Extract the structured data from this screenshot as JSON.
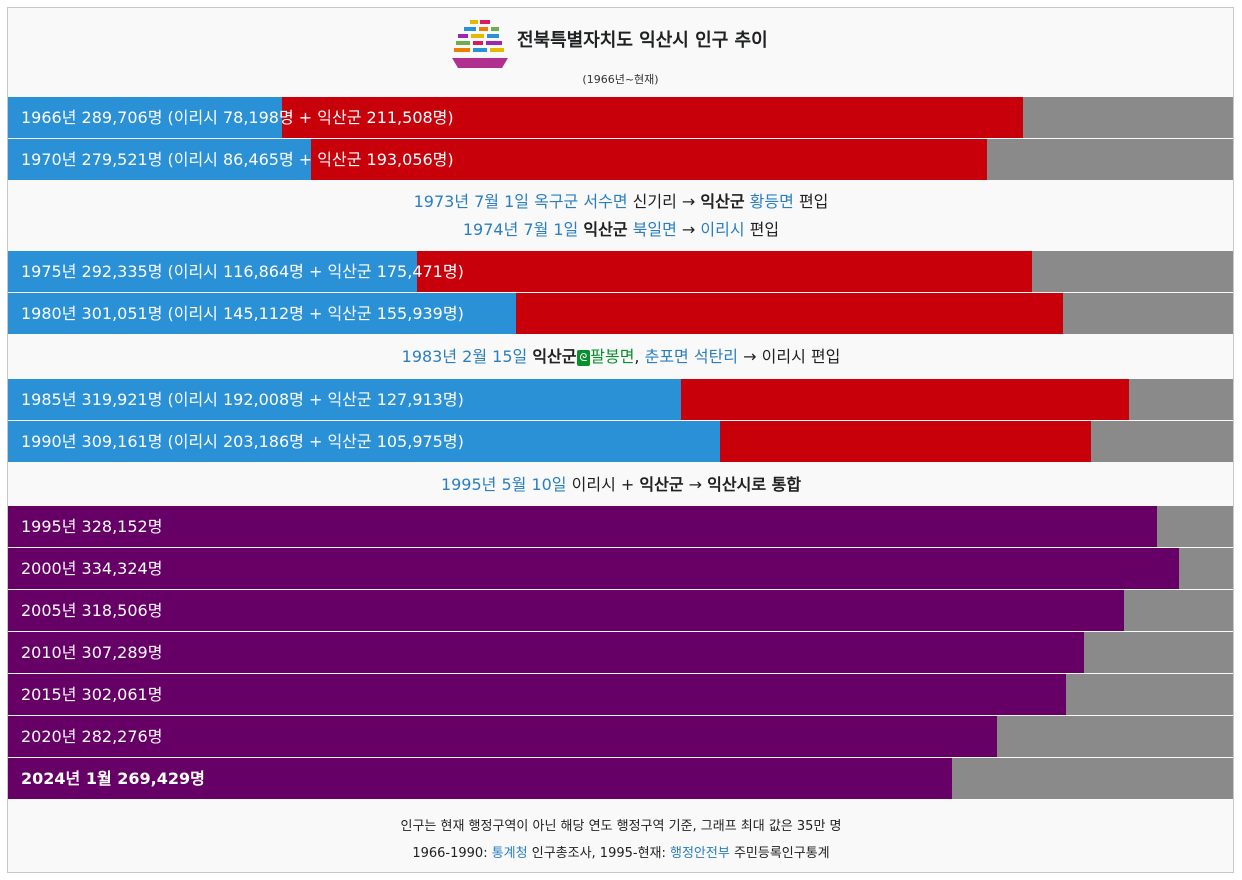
{
  "header": {
    "title": "전북특별자치도 익산시 인구 추이",
    "subtitle": "(1966년~현재)"
  },
  "colors": {
    "iri": "#2b91d6",
    "iksan_gun": "#c8000a",
    "iksan_si": "#660066",
    "remainder": "#8a8a8a",
    "link": "#2a7fc4"
  },
  "notes": {
    "n1973": {
      "date": "1973년 7월 1일",
      "from_gun": "옥구군",
      "from_myeon": "서수면",
      "from_ri": "신기리",
      "arrow": "→",
      "to_gun": "익산군",
      "to_myeon": "황등면",
      "suffix": "편입"
    },
    "n1974": {
      "date": "1974년 7월 1일",
      "from_gun": "익산군",
      "from_myeon": "북일면",
      "arrow": "→",
      "to": "이리시",
      "suffix": "편입"
    },
    "n1983": {
      "date": "1983년 2월 15일",
      "from_gun": "익산군",
      "icon": "link-icon",
      "icon_text": "ᘓ",
      "myeon1": "팔봉면",
      "comma": ", ",
      "myeon2": "춘포면",
      "ri": "석탄리",
      "arrow": "→",
      "to": "이리시",
      "suffix": "편입"
    },
    "n1995": {
      "date": "1995년 5월 10일",
      "a": "이리시",
      "plus": "+",
      "b": "익산군",
      "arrow": "→",
      "result": "익산시로 통합"
    }
  },
  "footer": {
    "line1": "인구는 현재 행정구역이 아닌 해당 연도 행정구역 기준, 그래프 최대 값은 35만 명",
    "line2_prefix": "1966-1990: ",
    "line2_link1": "통계청",
    "line2_mid": " 인구총조사, 1995-현재: ",
    "line2_link2": "행정안전부",
    "line2_suffix": " 주민등록인구통계"
  },
  "chart_data": {
    "type": "bar",
    "orientation": "horizontal",
    "stacked": true,
    "title": "전북특별자치도 익산시 인구 추이",
    "subtitle": "(1966년~현재)",
    "xlim": [
      0,
      350000
    ],
    "rows": [
      {
        "key": "1966",
        "label": "1966년 289,706명 (이리시 78,198명 + 익산군 211,508명)",
        "total": 289706,
        "iri": 78198,
        "gun": 211508
      },
      {
        "key": "1970",
        "label": "1970년 279,521명 (이리시 86,465명 + 익산군 193,056명)",
        "total": 279521,
        "iri": 86465,
        "gun": 193056
      },
      {
        "key": "1975",
        "label": "1975년 292,335명 (이리시 116,864명 + 익산군 175,471명)",
        "total": 292335,
        "iri": 116864,
        "gun": 175471
      },
      {
        "key": "1980",
        "label": "1980년 301,051명 (이리시 145,112명 + 익산군 155,939명)",
        "total": 301051,
        "iri": 145112,
        "gun": 155939
      },
      {
        "key": "1985",
        "label": "1985년 319,921명 (이리시 192,008명 + 익산군 127,913명)",
        "total": 319921,
        "iri": 192008,
        "gun": 127913
      },
      {
        "key": "1990",
        "label": "1990년 309,161명 (이리시 203,186명 + 익산군 105,975명)",
        "total": 309161,
        "iri": 203186,
        "gun": 105975
      },
      {
        "key": "1995",
        "label": "1995년 328,152명",
        "total": 328152,
        "si": 328152
      },
      {
        "key": "2000",
        "label": "2000년 334,324명",
        "total": 334324,
        "si": 334324
      },
      {
        "key": "2005",
        "label": "2005년 318,506명",
        "total": 318506,
        "si": 318506
      },
      {
        "key": "2010",
        "label": "2010년 307,289명",
        "total": 307289,
        "si": 307289
      },
      {
        "key": "2015",
        "label": "2015년 302,061명",
        "total": 302061,
        "si": 302061
      },
      {
        "key": "2020",
        "label": "2020년 282,276명",
        "total": 282276,
        "si": 282276
      },
      {
        "key": "2024",
        "label": "2024년 1월 269,429명",
        "total": 269429,
        "si": 269429,
        "bold": true
      }
    ]
  }
}
